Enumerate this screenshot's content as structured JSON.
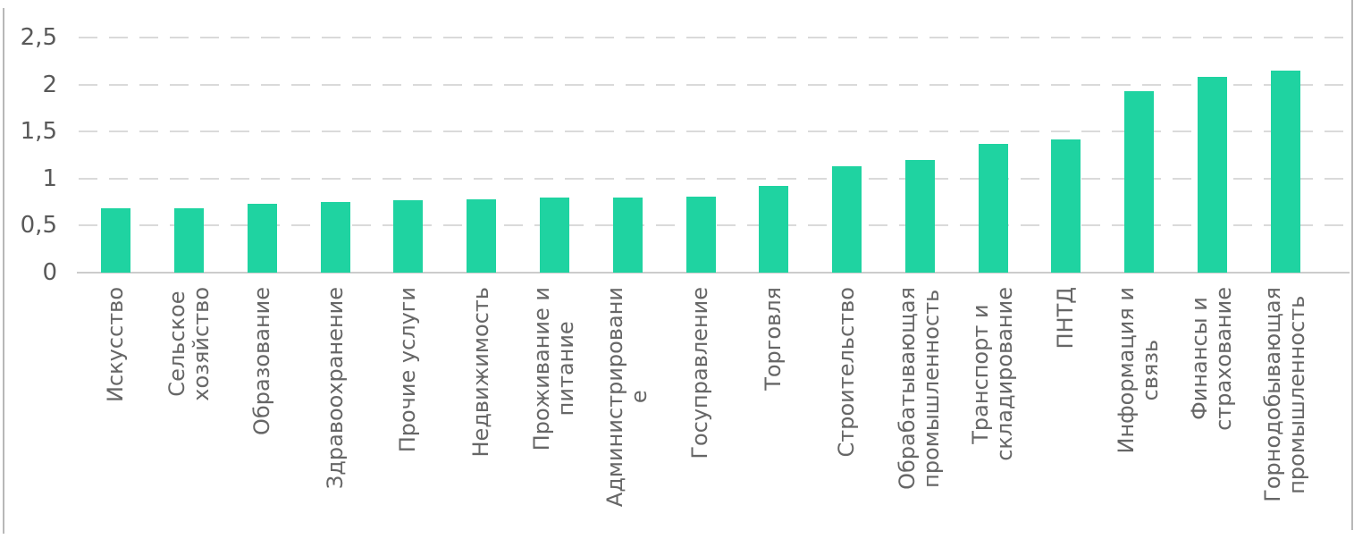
{
  "page": {
    "background_color": "#ffffff",
    "frame_border_color": "#b8b8b8"
  },
  "chart_data": {
    "type": "bar",
    "title": "",
    "xlabel": "",
    "ylabel": "",
    "categories": [
      "Искусство",
      "Сельское\nхозяйство",
      "Образование",
      "Здравоохранение",
      "Прочие услуги",
      "Недвижимость",
      "Проживание и\nпитание",
      "Администрировани\nе",
      "Госуправление",
      "Торговля",
      "Строительство",
      "Обрабатывающая\nпромышленность",
      "Транспорт и\nскладирование",
      "ПНТД",
      "Информация и\nсвязь",
      "Финансы и\nстрахование",
      "Горнодобывающая\nпромышленность"
    ],
    "values": [
      0.68,
      0.68,
      0.73,
      0.75,
      0.77,
      0.78,
      0.8,
      0.8,
      0.81,
      0.92,
      1.13,
      1.2,
      1.37,
      1.42,
      1.93,
      2.08,
      2.15
    ],
    "ylim": [
      0,
      2.5
    ],
    "y_ticks": [
      {
        "label": "0",
        "value": 0
      },
      {
        "label": "0,5",
        "value": 0.5
      },
      {
        "label": "1",
        "value": 1
      },
      {
        "label": "1,5",
        "value": 1.5
      },
      {
        "label": "2",
        "value": 2
      },
      {
        "label": "2,5",
        "value": 2.5
      }
    ],
    "grid": "horizontal-dashed",
    "legend": "none",
    "bar_color": "#1fd3a1",
    "gridline_color": "#dadada",
    "axis_line_color": "#cccccc",
    "tick_label_color": "#595959",
    "category_label_color": "#666666"
  }
}
